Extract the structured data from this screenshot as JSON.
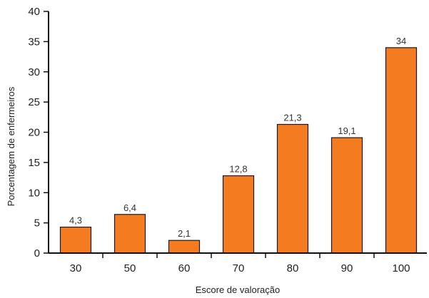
{
  "chart_data": {
    "type": "bar",
    "categories": [
      "30",
      "50",
      "60",
      "70",
      "80",
      "90",
      "100"
    ],
    "values": [
      4.3,
      6.4,
      2.1,
      12.8,
      21.3,
      19.1,
      34
    ],
    "data_labels": [
      "4,3",
      "6,4",
      "2,1",
      "12,8",
      "21,3",
      "19,1",
      "34"
    ],
    "xlabel": "Escore de valoração",
    "ylabel": "Porcentagem de enfermeiros",
    "ylim": [
      0,
      40
    ],
    "yticks": [
      0,
      5,
      10,
      15,
      20,
      25,
      30,
      35,
      40
    ],
    "grid": false,
    "legend": "none",
    "colors": {
      "bar_fill": "#F47B20",
      "bar_stroke": "#1a1a1a",
      "axis": "#111111"
    }
  }
}
